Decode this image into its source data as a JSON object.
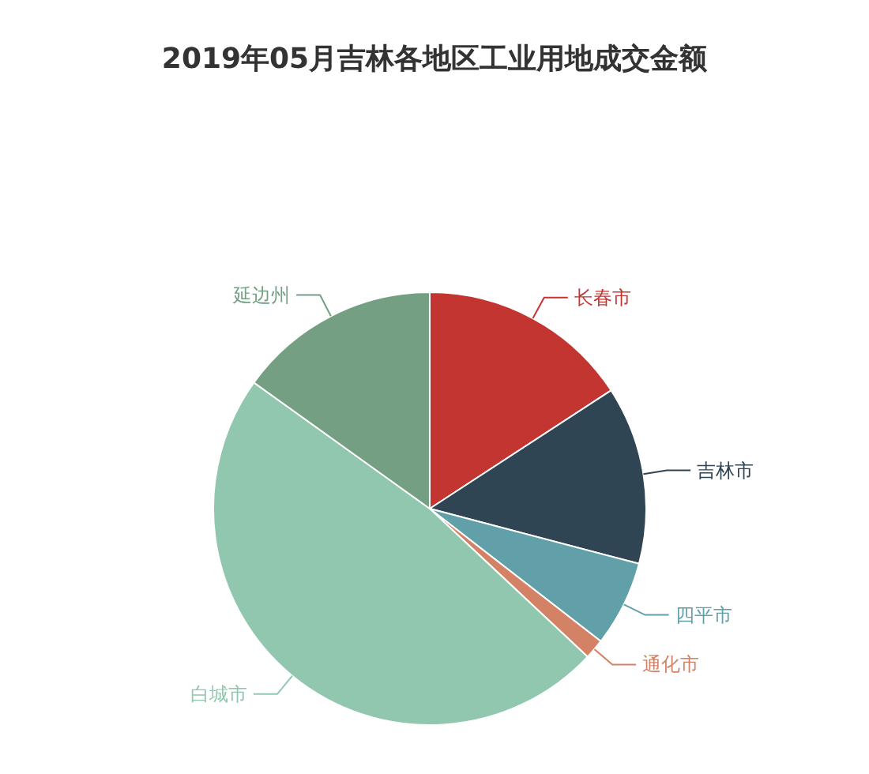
{
  "chart_data": {
    "type": "pie",
    "title": "2019年05月吉林各地区工业用地成交金额",
    "categories": [
      "长春市",
      "吉林市",
      "四平市",
      "通化市",
      "白城市",
      "延边州"
    ],
    "values": [
      15.8,
      13.3,
      6.4,
      1.5,
      47.9,
      15.1
    ],
    "colors": [
      "#c23531",
      "#2f4554",
      "#61a0a8",
      "#d48265",
      "#91c7ae",
      "#749f83"
    ]
  }
}
